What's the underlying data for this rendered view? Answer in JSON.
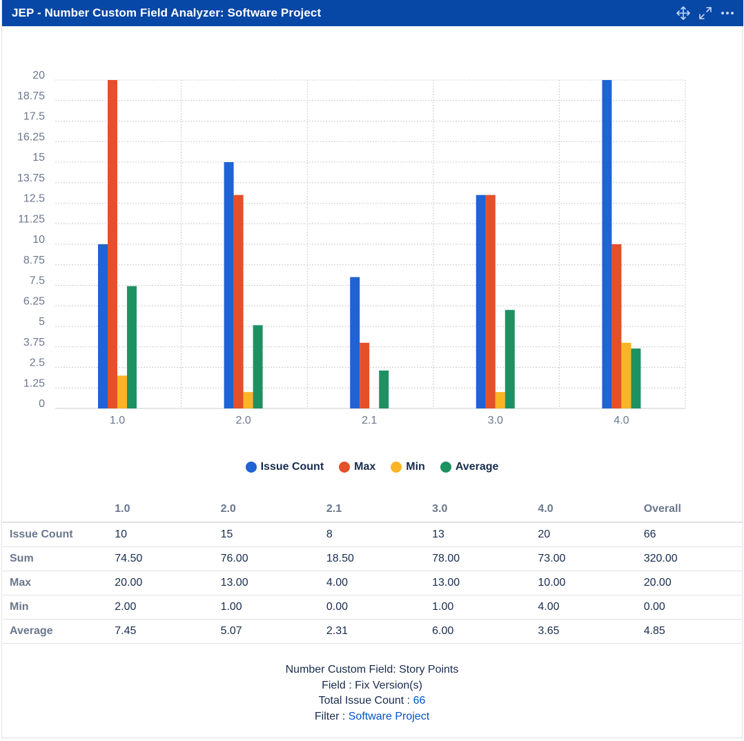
{
  "header": {
    "title": "JEP - Number Custom Field Analyzer: Software Project",
    "actions": [
      "move-icon",
      "expand-icon",
      "more-icon"
    ]
  },
  "chart_data": {
    "type": "bar",
    "categories": [
      "1.0",
      "2.0",
      "2.1",
      "3.0",
      "4.0"
    ],
    "series": [
      {
        "name": "Issue Count",
        "color": "#1f63d4",
        "values": [
          10,
          15,
          8,
          13,
          20
        ]
      },
      {
        "name": "Max",
        "color": "#e4502a",
        "values": [
          20,
          13,
          4,
          13,
          10
        ]
      },
      {
        "name": "Min",
        "color": "#fbb424",
        "values": [
          2,
          1,
          0,
          1,
          4
        ]
      },
      {
        "name": "Average",
        "color": "#1e9162",
        "values": [
          7.45,
          5.07,
          2.31,
          6,
          3.65
        ]
      }
    ],
    "yticks": [
      "0",
      "1.25",
      "2.5",
      "3.75",
      "5",
      "6.25",
      "7.5",
      "8.75",
      "10",
      "11.25",
      "12.5",
      "13.75",
      "15",
      "16.25",
      "17.5",
      "18.75",
      "20"
    ],
    "ylim": [
      0,
      20
    ],
    "grid": true,
    "legend_position": "bottom-center"
  },
  "table": {
    "columns": [
      "",
      "1.0",
      "2.0",
      "2.1",
      "3.0",
      "4.0",
      "Overall"
    ],
    "rows": [
      {
        "label": "Issue Count",
        "cells": [
          "10",
          "15",
          "8",
          "13",
          "20",
          "66"
        ]
      },
      {
        "label": "Sum",
        "cells": [
          "74.50",
          "76.00",
          "18.50",
          "78.00",
          "73.00",
          "320.00"
        ]
      },
      {
        "label": "Max",
        "cells": [
          "20.00",
          "13.00",
          "4.00",
          "13.00",
          "10.00",
          "20.00"
        ]
      },
      {
        "label": "Min",
        "cells": [
          "2.00",
          "1.00",
          "0.00",
          "1.00",
          "4.00",
          "0.00"
        ]
      },
      {
        "label": "Average",
        "cells": [
          "7.45",
          "5.07",
          "2.31",
          "6.00",
          "3.65",
          "4.85"
        ]
      }
    ]
  },
  "footer": {
    "custom_field_label": "Number Custom Field: Story Points",
    "field_label": "Field : Fix Version(s)",
    "total_label": "Total Issue Count : ",
    "total_value": "66",
    "filter_label": "Filter : ",
    "filter_value": "Software Project"
  }
}
